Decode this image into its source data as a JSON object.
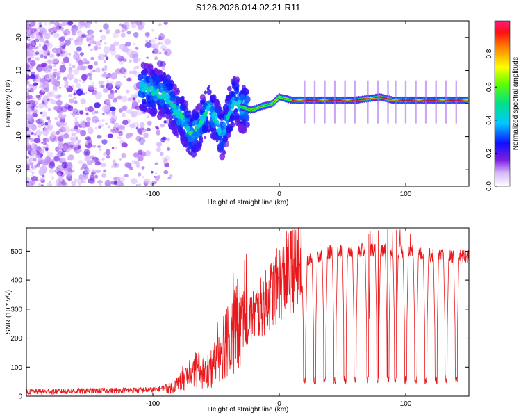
{
  "title": "S126.2026.014.02.21.R11",
  "chart_data": [
    {
      "type": "heatmap",
      "name": "spectrogram",
      "xlabel": "Height of straight line (km)",
      "ylabel": "Frequency (Hz)",
      "xlim": [
        -200,
        150
      ],
      "ylim": [
        -25,
        25
      ],
      "x_ticks": [
        -100,
        0,
        100
      ],
      "y_ticks": [
        -20,
        -10,
        0,
        10,
        20
      ],
      "colorbar": {
        "label": "Normalized spectral amplitude",
        "range": [
          0,
          1
        ],
        "ticks": [
          0.0,
          0.2,
          0.4,
          0.6,
          0.8
        ]
      },
      "center_trace": [
        {
          "x": -105,
          "y": 5
        },
        {
          "x": -95,
          "y": 3
        },
        {
          "x": -88,
          "y": 2
        },
        {
          "x": -82,
          "y": -2
        },
        {
          "x": -76,
          "y": -5
        },
        {
          "x": -70,
          "y": -10
        },
        {
          "x": -62,
          "y": -6
        },
        {
          "x": -56,
          "y": -1
        },
        {
          "x": -50,
          "y": -5
        },
        {
          "x": -45,
          "y": -10
        },
        {
          "x": -40,
          "y": -3
        },
        {
          "x": -35,
          "y": 2
        },
        {
          "x": -30,
          "y": -1
        },
        {
          "x": -22,
          "y": -2
        },
        {
          "x": -15,
          "y": -1
        },
        {
          "x": -5,
          "y": 0
        },
        {
          "x": 0,
          "y": 2
        },
        {
          "x": 10,
          "y": 1
        },
        {
          "x": 30,
          "y": 1
        },
        {
          "x": 60,
          "y": 1
        },
        {
          "x": 80,
          "y": 2
        },
        {
          "x": 90,
          "y": 1
        },
        {
          "x": 110,
          "y": 1
        },
        {
          "x": 150,
          "y": 1
        }
      ]
    },
    {
      "type": "line",
      "name": "snr",
      "xlabel": "Height of straight line (km)",
      "ylabel": "SNR (10 * v/v)",
      "xlim": [
        -200,
        150
      ],
      "ylim": [
        0,
        580
      ],
      "x_ticks": [
        -100,
        0,
        100
      ],
      "y_ticks": [
        0,
        100,
        200,
        300,
        400,
        500
      ],
      "series_color": "#e8191c",
      "envelope": [
        {
          "x": -200,
          "y": 15
        },
        {
          "x": -150,
          "y": 18
        },
        {
          "x": -100,
          "y": 22
        },
        {
          "x": -85,
          "y": 30
        },
        {
          "x": -75,
          "y": 60
        },
        {
          "x": -65,
          "y": 90
        },
        {
          "x": -55,
          "y": 80
        },
        {
          "x": -45,
          "y": 180
        },
        {
          "x": -35,
          "y": 240
        },
        {
          "x": -25,
          "y": 260
        },
        {
          "x": -15,
          "y": 300
        },
        {
          "x": -5,
          "y": 360
        },
        {
          "x": 5,
          "y": 420
        },
        {
          "x": 15,
          "y": 450
        },
        {
          "x": 25,
          "y": 470
        },
        {
          "x": 35,
          "y": 495
        },
        {
          "x": 50,
          "y": 500
        },
        {
          "x": 75,
          "y": 505
        },
        {
          "x": 100,
          "y": 500
        },
        {
          "x": 120,
          "y": 485
        },
        {
          "x": 150,
          "y": 480
        }
      ],
      "dropouts_x": [
        20,
        28,
        36,
        44,
        52,
        60,
        70,
        78,
        86,
        92,
        100,
        108,
        116,
        124,
        132,
        140
      ],
      "dropout_min": 40
    }
  ]
}
